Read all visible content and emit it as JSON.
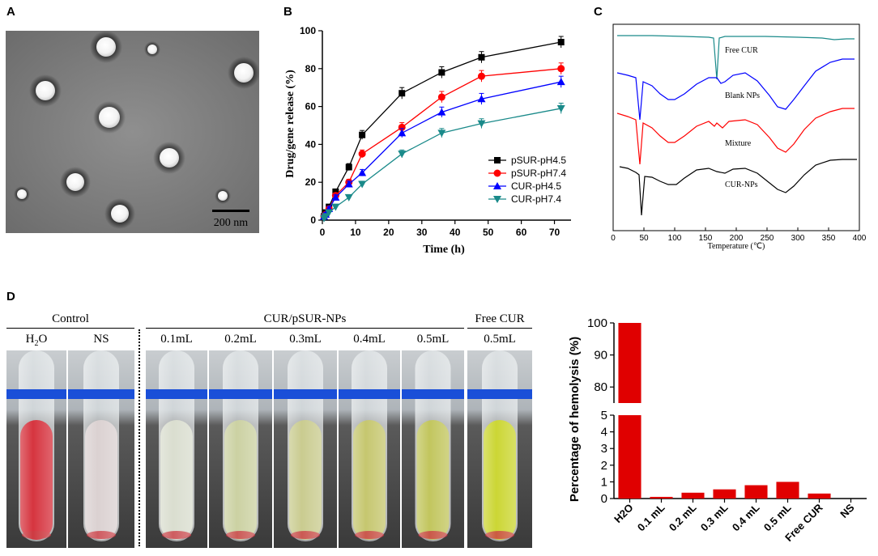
{
  "panels": {
    "a": "A",
    "b": "B",
    "c": "C",
    "d": "D"
  },
  "tem": {
    "scale_label": "200 nm"
  },
  "chart_data": [
    {
      "type": "line",
      "panel": "B",
      "xlabel": "Time (h)",
      "ylabel": "Drug/gene release (%)",
      "xlim": [
        0,
        75
      ],
      "ylim": [
        0,
        100
      ],
      "xticks": [
        0,
        10,
        20,
        30,
        40,
        50,
        60,
        70
      ],
      "yticks": [
        0,
        20,
        40,
        60,
        80,
        100
      ],
      "x": [
        0,
        0.5,
        1,
        2,
        4,
        8,
        12,
        24,
        36,
        48,
        72
      ],
      "legend_position": "center-right",
      "series": [
        {
          "name": "pSUR-pH4.5",
          "color": "#000000",
          "marker": "square",
          "values": [
            0,
            2,
            4,
            7,
            15,
            28,
            45,
            67,
            78,
            86,
            94
          ]
        },
        {
          "name": "pSUR-pH7.4",
          "color": "#ff0000",
          "marker": "circle",
          "values": [
            0,
            2,
            3,
            6,
            13,
            20,
            35,
            49,
            65,
            76,
            80
          ]
        },
        {
          "name": "CUR-pH4.5",
          "color": "#0000ff",
          "marker": "triangle-up",
          "values": [
            0,
            2,
            3,
            6,
            12,
            19,
            25,
            46,
            57,
            64,
            73
          ]
        },
        {
          "name": "CUR-pH7.4",
          "color": "#1a8a8a",
          "marker": "triangle-down",
          "values": [
            0,
            1,
            2,
            4,
            7,
            12,
            19,
            35,
            46,
            51,
            59
          ]
        }
      ]
    },
    {
      "type": "line",
      "panel": "C",
      "xlabel": "Temperature (℃)",
      "ylabel": "",
      "xlim": [
        0,
        400
      ],
      "xticks": [
        0,
        50,
        100,
        150,
        200,
        250,
        300,
        350,
        400
      ],
      "series": [
        {
          "name": "Free CUR",
          "color": "#1a8a8a"
        },
        {
          "name": "Blank NPs",
          "color": "#0000ff"
        },
        {
          "name": "Mixture",
          "color": "#ff0000"
        },
        {
          "name": "CUR-NPs",
          "color": "#000000"
        }
      ]
    },
    {
      "type": "bar",
      "panel": "D",
      "ylabel": "Percentage of hemolysis (%)",
      "categories": [
        "H2O",
        "0.1 mL",
        "0.2 mL",
        "0.3 mL",
        "0.4 mL",
        "0.5 mL",
        "Free CUR",
        "NS"
      ],
      "values": [
        100,
        0.1,
        0.35,
        0.55,
        0.8,
        1.0,
        0.3,
        0
      ],
      "ylim_lower": [
        0,
        5
      ],
      "ylim_upper": [
        75,
        100
      ],
      "yticks_lower": [
        0,
        1,
        2,
        3,
        4,
        5
      ],
      "yticks_upper": [
        80,
        90,
        100
      ],
      "color": "#e00000"
    }
  ],
  "photo": {
    "control_header": "Control",
    "nps_header": "CUR/pSUR-NPs",
    "free_header": "Free CUR",
    "tubes": [
      {
        "label_main": "H",
        "label_sub": "2",
        "label_tail": "O",
        "liquid": "#d42a35"
      },
      {
        "label_main": "NS",
        "label_sub": "",
        "label_tail": "",
        "liquid": "#d9cfcf"
      },
      {
        "label_main": "0.1mL",
        "label_sub": "",
        "label_tail": "",
        "liquid": "#d8dccd"
      },
      {
        "label_main": "0.2mL",
        "label_sub": "",
        "label_tail": "",
        "liquid": "#c9cf9e"
      },
      {
        "label_main": "0.3mL",
        "label_sub": "",
        "label_tail": "",
        "liquid": "#c7c98a"
      },
      {
        "label_main": "0.4mL",
        "label_sub": "",
        "label_tail": "",
        "liquid": "#c3c468"
      },
      {
        "label_main": "0.5mL",
        "label_sub": "",
        "label_tail": "",
        "liquid": "#bfc356"
      },
      {
        "label_main": "0.5mL",
        "label_sub": "",
        "label_tail": "",
        "liquid": "#c9d42a"
      }
    ]
  }
}
